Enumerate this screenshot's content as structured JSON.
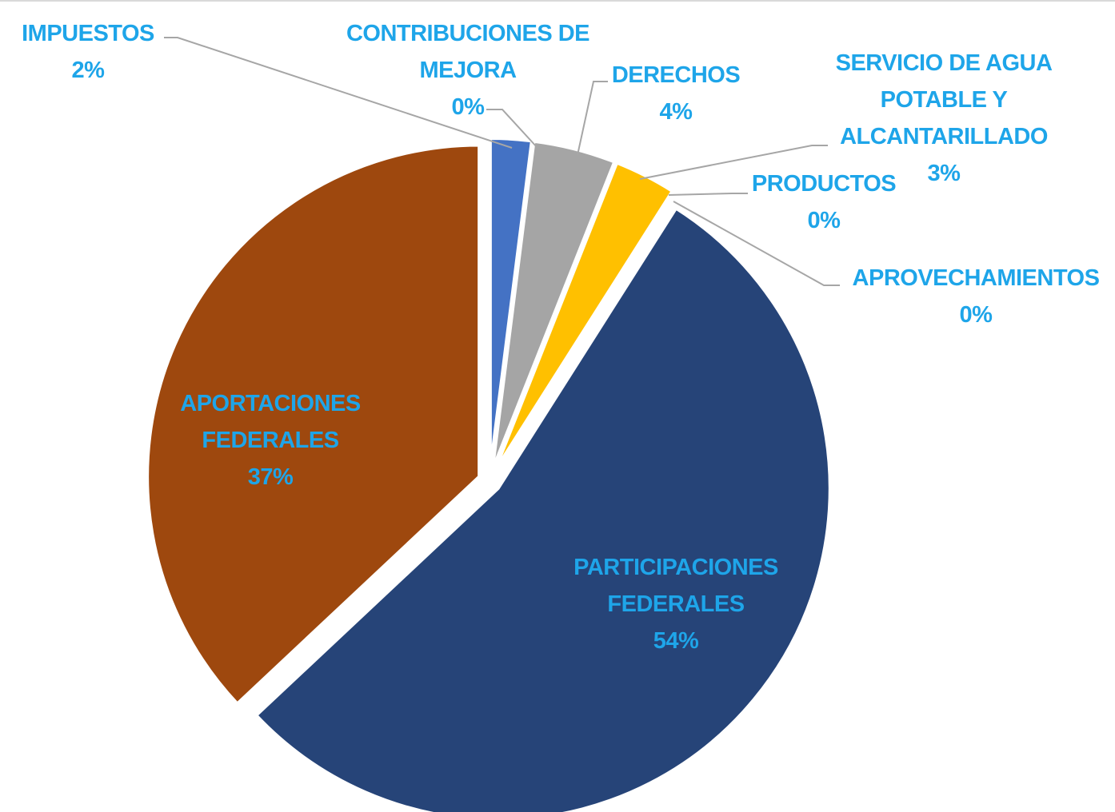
{
  "chart_data": {
    "type": "pie",
    "categories": [
      "IMPUESTOS",
      "CONTRIBUCIONES DE MEJORA",
      "DERECHOS",
      "SERVICIO DE AGUA POTABLE Y ALCANTARILLADO",
      "PRODUCTOS",
      "APROVECHAMIENTOS",
      "PARTICIPACIONES FEDERALES",
      "APORTACIONES FEDERALES"
    ],
    "values": [
      2,
      0,
      4,
      3,
      0,
      0,
      54,
      37
    ],
    "value_labels": [
      "2%",
      "0%",
      "4%",
      "3%",
      "0%",
      "0%",
      "54%",
      "37%"
    ],
    "colors": [
      "#4472c4",
      "#ed7d31",
      "#a5a5a5",
      "#ffc000",
      "#5b9bd5",
      "#70ad47",
      "#264478",
      "#9e480e"
    ]
  }
}
